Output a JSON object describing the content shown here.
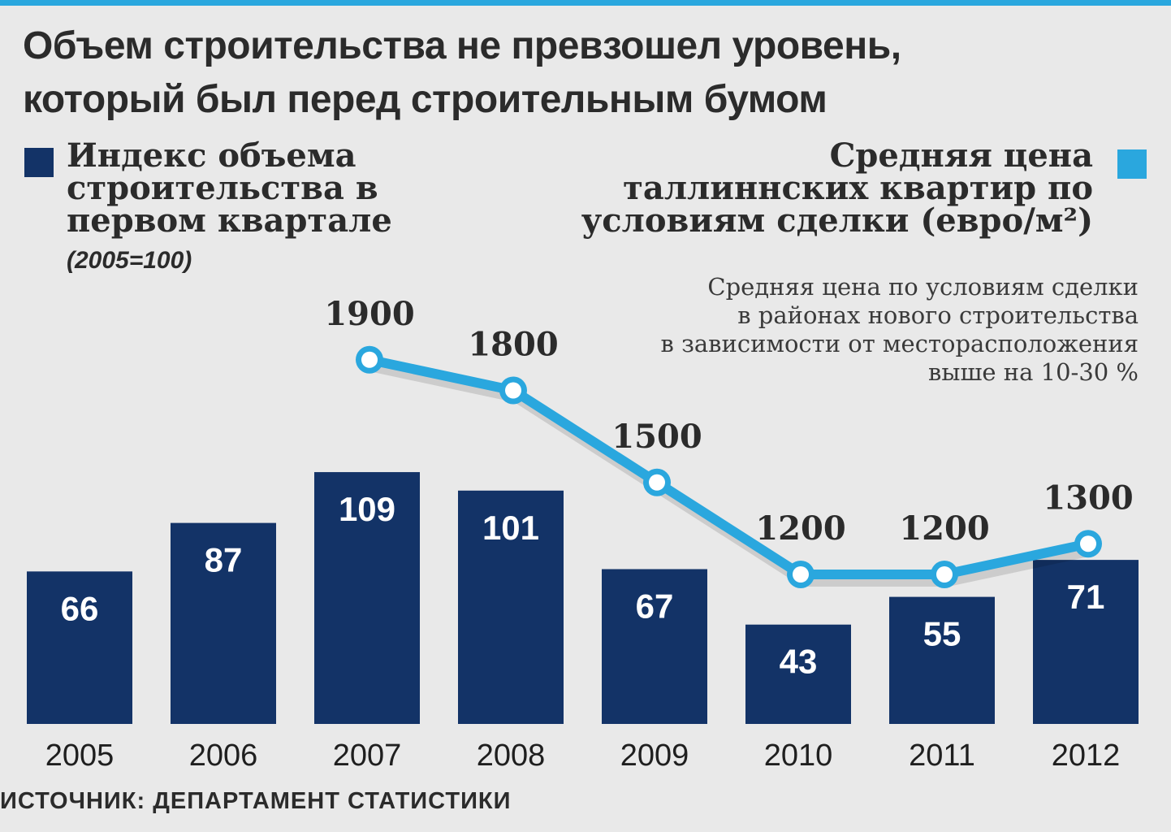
{
  "title": "Объем строительства не превзошел уровень,\nкоторый был перед строительным бумом",
  "colors": {
    "bars": "#133367",
    "line": "#2aa7de",
    "background": "#e9e9e9",
    "accent_line": "#2aa7de"
  },
  "legend": {
    "bars_label": "Индекс объема\nстроительства в\nпервом квартале",
    "bars_note": "(2005=100)",
    "line_label": "Средняя цена\nталлиннских квартир по\nусловиям сделки (евро/м²)"
  },
  "annotation": "Средняя цена по условиям сделки\nв районах нового строительства\nв зависимости от месторасположения\nвыше на 10-30 %",
  "source": "ИСТОЧНИК: ДЕПАРТАМЕНТ СТАТИСТИКИ",
  "chart_data": {
    "type": "bar",
    "title": "Объем строительства не превзошел уровень, который был перед строительным бумом",
    "categories": [
      "2005",
      "2006",
      "2007",
      "2008",
      "2009",
      "2010",
      "2011",
      "2012"
    ],
    "series": [
      {
        "name": "Индекс объема строительства в первом квартале (2005=100)",
        "type": "bar",
        "values": [
          66,
          87,
          109,
          101,
          67,
          43,
          55,
          71
        ]
      },
      {
        "name": "Средняя цена таллиннских квартир по условиям сделки (евро/м²)",
        "type": "line",
        "x": [
          "2007",
          "2008",
          "2009",
          "2010",
          "2011",
          "2012"
        ],
        "values": [
          1900,
          1800,
          1500,
          1200,
          1200,
          1300
        ]
      }
    ],
    "xlabel": "",
    "ylabel": "",
    "bar_ylim": [
      0,
      115
    ],
    "line_ylim": [
      0,
      2000
    ],
    "grid": false
  }
}
